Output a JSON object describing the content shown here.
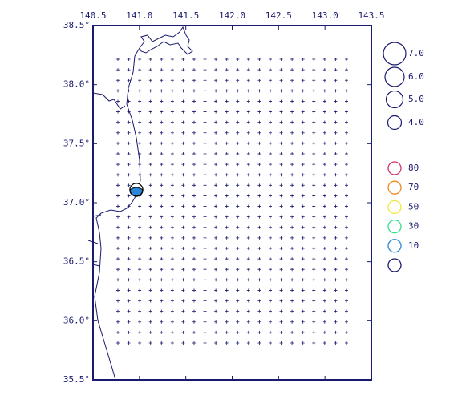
{
  "map": {
    "top_labels": [
      "140.5",
      "141.0",
      "141.5",
      "142.0",
      "142.5",
      "143.0",
      "143.5"
    ],
    "left_labels": [
      "38.5°",
      "38.0°",
      "37.5°",
      "37.0°",
      "36.5°",
      "36.0°",
      "35.5°"
    ],
    "magnitude_legend": [
      "7.0",
      "6.0",
      "5.0",
      "4.0"
    ],
    "depth_legend": [
      {
        "label": "80",
        "color": "#d0306a"
      },
      {
        "label": "70",
        "color": "#f08a20"
      },
      {
        "label": "50",
        "color": "#f0e840"
      },
      {
        "label": "30",
        "color": "#30e08c"
      },
      {
        "label": "10",
        "color": "#2a86d6"
      },
      {
        "label": "",
        "color": "#1a1a6e"
      }
    ]
  }
}
